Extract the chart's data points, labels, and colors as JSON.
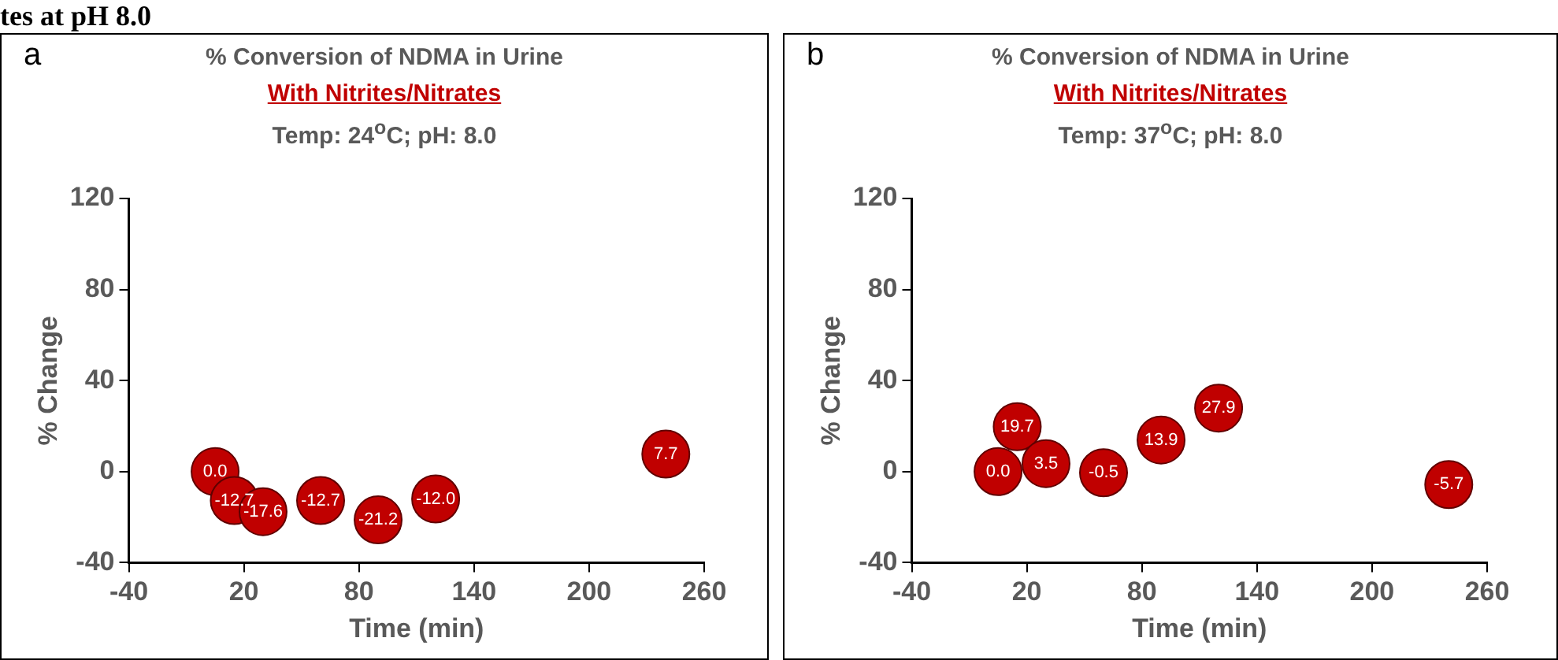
{
  "chart_data": [
    {
      "type": "scatter",
      "title": "% Conversion of NDMA in Urine",
      "subtitle": "With Nitrites/Nitrates",
      "xlabel": "Time (min)",
      "ylabel": "% Change",
      "annotations": [
        "a",
        "Temp: 24$^{o}$C; pH: 8.0",
        "tes at pH 8.0"
      ],
      "x": [
        5,
        15,
        30,
        60,
        90,
        120,
        240
      ],
      "series": [
        {
          "color": "#c00000",
          "values": [
            0.0,
            -12.7,
            -17.6,
            -12.7,
            -21.2,
            -12.0,
            7.7
          ],
          "value_labels": [
            "0.0",
            "-12.7",
            "-17.6",
            "-12.7",
            "-21.2",
            "-12.0",
            "7.7"
          ]
        }
      ],
      "xlim": [
        -40,
        260
      ],
      "xticks": [
        -40,
        20,
        80,
        140,
        200,
        260
      ],
      "ylim": [
        -40,
        120
      ],
      "yticks": [
        -40,
        0,
        40,
        80,
        120
      ],
      "grid": false,
      "legend": false,
      "marker": "circle"
    },
    {
      "type": "scatter",
      "title": "% Conversion of NDMA in Urine",
      "subtitle": "With Nitrites/Nitrates",
      "xlabel": "Time (min)",
      "ylabel": "% Change",
      "annotations": [
        "b",
        "Temp: 37$^{o}$C; pH: 8.0"
      ],
      "x": [
        5,
        15,
        30,
        60,
        90,
        120,
        240
      ],
      "series": [
        {
          "color": "#c00000",
          "values": [
            0.0,
            19.7,
            3.5,
            -0.5,
            13.9,
            27.9,
            -5.7
          ],
          "value_labels": [
            "0.0",
            "19.7",
            "3.5",
            "-0.5",
            "13.9",
            "27.9",
            "-5.7"
          ]
        }
      ],
      "xlim": [
        -40,
        260
      ],
      "xticks": [
        -40,
        20,
        80,
        140,
        200,
        260
      ],
      "ylim": [
        -40,
        120
      ],
      "yticks": [
        -40,
        0,
        40,
        80,
        120
      ],
      "grid": false,
      "legend": false,
      "marker": "circle"
    }
  ]
}
